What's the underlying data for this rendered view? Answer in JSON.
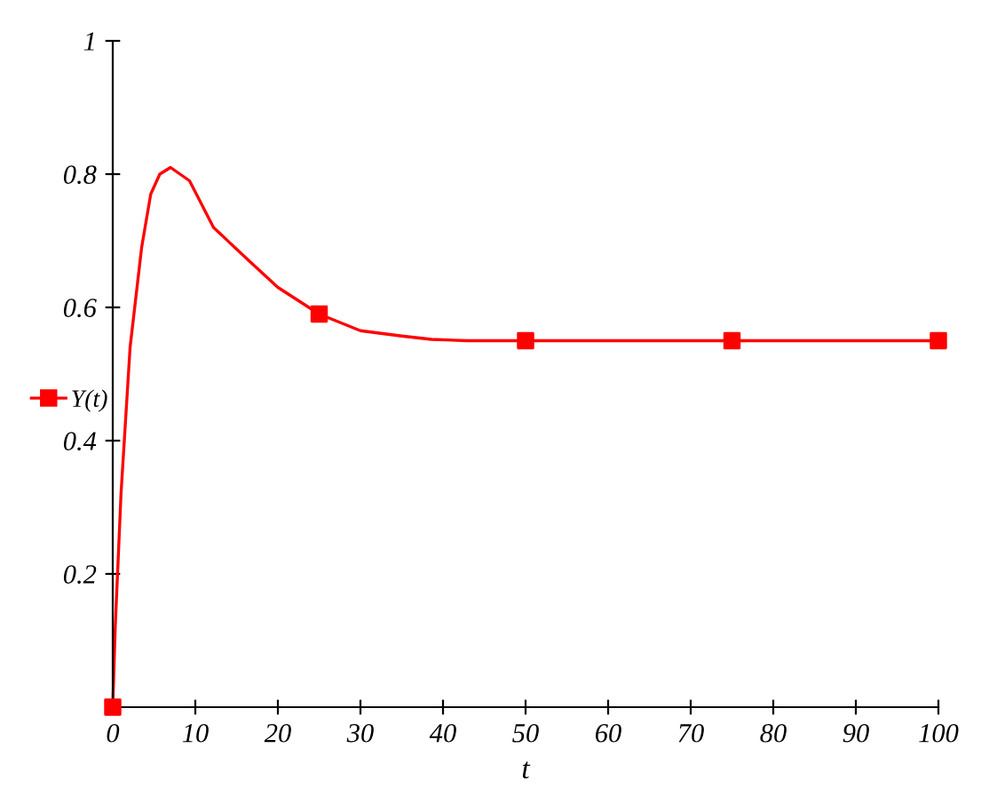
{
  "chart_data": {
    "type": "line",
    "xlabel": "t",
    "legend": "left",
    "series": [
      {
        "name": "Y(t)",
        "color": "#ff0000",
        "marker": "none",
        "x": [
          0,
          0.3,
          1.0,
          2.1,
          3.5,
          4.6,
          5.7,
          7.0,
          9.3,
          12.2,
          16.5,
          20,
          25,
          30,
          35,
          38.6,
          43,
          50,
          75,
          100
        ],
        "values": [
          0,
          0.12,
          0.32,
          0.54,
          0.69,
          0.77,
          0.8,
          0.81,
          0.79,
          0.72,
          0.67,
          0.63,
          0.59,
          0.565,
          0.557,
          0.552,
          0.55,
          0.55,
          0.55,
          0.55
        ]
      },
      {
        "color": "#ff0000",
        "type": "scatter",
        "marker": "square",
        "x": [
          0,
          25,
          50,
          75,
          100
        ],
        "values": [
          0,
          0.59,
          0.55,
          0.55,
          0.55
        ]
      }
    ],
    "xlim": [
      0,
      100
    ],
    "xticks": [
      0,
      10,
      20,
      30,
      40,
      50,
      60,
      70,
      80,
      90,
      100
    ],
    "ylim": [
      0,
      1
    ],
    "yticks": [
      0.2,
      0.4,
      0.6,
      0.8,
      1
    ],
    "grid": false
  }
}
